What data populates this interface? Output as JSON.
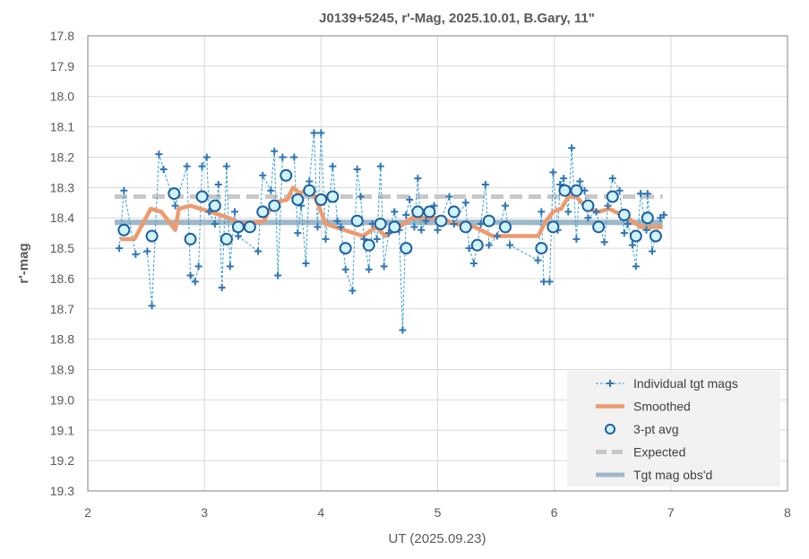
{
  "chart_data": {
    "type": "line",
    "title": "J0139+5245, r'-Mag, 2025.10.01, B.Gary, 11\"",
    "xlabel": "UT (2025.09.23)",
    "ylabel": "r'-mag",
    "xlim": [
      2,
      8
    ],
    "ylim": [
      19.3,
      17.8
    ],
    "y_inverted": true,
    "grid": true,
    "x_ticks": [
      "2",
      "3",
      "4",
      "5",
      "6",
      "7",
      "8"
    ],
    "y_ticks": [
      "17.8",
      "17.9",
      "18.0",
      "18.1",
      "18.2",
      "18.3",
      "18.4",
      "18.5",
      "18.6",
      "18.7",
      "18.8",
      "18.9",
      "19.0",
      "19.1",
      "19.2",
      "19.3"
    ],
    "legend_position": "bottom-right",
    "colors": {
      "individual": "#2E75B6",
      "smoothed": "#ED9A6E",
      "avg_fill": "#CFF3FB",
      "avg_edge": "#1F5FA0",
      "expected": "#C8C8C8",
      "observed": "#9DB8C8"
    },
    "series": [
      {
        "name": "Individual tgt mags",
        "kind": "points-dashed",
        "x": [
          2.27,
          2.31,
          2.41,
          2.51,
          2.55,
          2.61,
          2.65,
          2.75,
          2.85,
          2.88,
          2.92,
          2.95,
          2.98,
          3.02,
          3.04,
          3.09,
          3.12,
          3.15,
          3.19,
          3.22,
          3.26,
          3.29,
          3.46,
          3.5,
          3.57,
          3.6,
          3.63,
          3.67,
          3.77,
          3.8,
          3.83,
          3.87,
          3.9,
          3.94,
          3.97,
          4.0,
          4.04,
          4.1,
          4.14,
          4.17,
          4.21,
          4.27,
          4.31,
          4.34,
          4.37,
          4.41,
          4.44,
          4.48,
          4.51,
          4.54,
          4.58,
          4.63,
          4.67,
          4.7,
          4.73,
          4.76,
          4.8,
          4.83,
          4.86,
          4.9,
          4.97,
          5.0,
          5.1,
          5.14,
          5.24,
          5.27,
          5.31,
          5.37,
          5.41,
          5.44,
          5.51,
          5.58,
          5.62,
          5.86,
          5.89,
          5.91,
          5.96,
          5.99,
          6.03,
          6.05,
          6.08,
          6.12,
          6.15,
          6.19,
          6.22,
          6.26,
          6.29,
          6.36,
          6.43,
          6.46,
          6.5,
          6.56,
          6.6,
          6.63,
          6.67,
          6.7,
          6.74,
          6.79,
          6.8,
          6.84,
          6.91,
          6.94
        ],
        "y": [
          18.5,
          18.31,
          18.52,
          18.51,
          18.69,
          18.19,
          18.24,
          18.36,
          18.23,
          18.59,
          18.61,
          18.56,
          18.23,
          18.2,
          18.38,
          18.42,
          18.29,
          18.63,
          18.23,
          18.56,
          18.38,
          18.46,
          18.51,
          18.26,
          18.31,
          18.18,
          18.59,
          18.2,
          18.2,
          18.45,
          18.36,
          18.55,
          18.28,
          18.12,
          18.43,
          18.12,
          18.47,
          18.23,
          18.41,
          18.43,
          18.57,
          18.64,
          18.24,
          18.33,
          18.47,
          18.57,
          18.42,
          18.47,
          18.23,
          18.56,
          18.45,
          18.38,
          18.44,
          18.77,
          18.39,
          18.34,
          18.43,
          18.27,
          18.44,
          18.41,
          18.36,
          18.44,
          18.33,
          18.42,
          18.35,
          18.5,
          18.55,
          18.42,
          18.29,
          18.49,
          18.46,
          18.36,
          18.49,
          18.54,
          18.38,
          18.61,
          18.61,
          18.25,
          18.44,
          18.29,
          18.27,
          18.38,
          18.17,
          18.47,
          18.28,
          18.31,
          18.4,
          18.38,
          18.48,
          18.36,
          18.27,
          18.31,
          18.45,
          18.42,
          18.49,
          18.56,
          18.32,
          18.44,
          18.32,
          18.51,
          18.4,
          18.39
        ]
      },
      {
        "name": "Smoothed",
        "kind": "line",
        "x": [
          2.28,
          2.4,
          2.54,
          2.63,
          2.75,
          2.78,
          2.88,
          3.05,
          3.21,
          3.31,
          3.51,
          3.59,
          3.71,
          3.76,
          3.82,
          3.9,
          3.97,
          4.04,
          4.2,
          4.36,
          4.47,
          4.55,
          4.67,
          4.78,
          5.01,
          5.16,
          5.32,
          5.47,
          5.86,
          5.93,
          5.99,
          6.06,
          6.12,
          6.19,
          6.28,
          6.38,
          6.47,
          6.63,
          6.74,
          6.93
        ],
        "y": [
          18.47,
          18.47,
          18.37,
          18.38,
          18.44,
          18.37,
          18.36,
          18.38,
          18.4,
          18.42,
          18.41,
          18.35,
          18.34,
          18.3,
          18.32,
          18.3,
          18.35,
          18.42,
          18.44,
          18.46,
          18.43,
          18.46,
          18.43,
          18.4,
          18.4,
          18.42,
          18.43,
          18.46,
          18.46,
          18.41,
          18.38,
          18.37,
          18.33,
          18.33,
          18.37,
          18.38,
          18.37,
          18.4,
          18.43,
          18.43
        ]
      },
      {
        "name": "3-pt avg",
        "kind": "circles",
        "x": [
          2.31,
          2.55,
          2.74,
          2.88,
          2.98,
          3.09,
          3.19,
          3.29,
          3.39,
          3.5,
          3.6,
          3.7,
          3.8,
          3.9,
          4.0,
          4.1,
          4.21,
          4.31,
          4.41,
          4.51,
          4.63,
          4.73,
          4.83,
          4.93,
          5.03,
          5.14,
          5.24,
          5.34,
          5.44,
          5.58,
          5.89,
          5.99,
          6.09,
          6.19,
          6.29,
          6.38,
          6.5,
          6.6,
          6.7,
          6.8,
          6.87
        ],
        "y": [
          18.44,
          18.46,
          18.32,
          18.47,
          18.33,
          18.36,
          18.47,
          18.43,
          18.43,
          18.38,
          18.36,
          18.26,
          18.34,
          18.31,
          18.34,
          18.33,
          18.5,
          18.41,
          18.49,
          18.42,
          18.43,
          18.5,
          18.38,
          18.38,
          18.41,
          18.38,
          18.43,
          18.49,
          18.41,
          18.43,
          18.5,
          18.43,
          18.31,
          18.31,
          18.36,
          18.43,
          18.33,
          18.39,
          18.46,
          18.4,
          18.46
        ]
      },
      {
        "name": "Expected",
        "kind": "dashed-line",
        "x": [
          2.23,
          6.93
        ],
        "y": [
          18.33,
          18.33
        ]
      },
      {
        "name": "Tgt mag obs'd",
        "kind": "line",
        "x": [
          2.23,
          6.93
        ],
        "y": [
          18.415,
          18.415
        ]
      }
    ]
  }
}
